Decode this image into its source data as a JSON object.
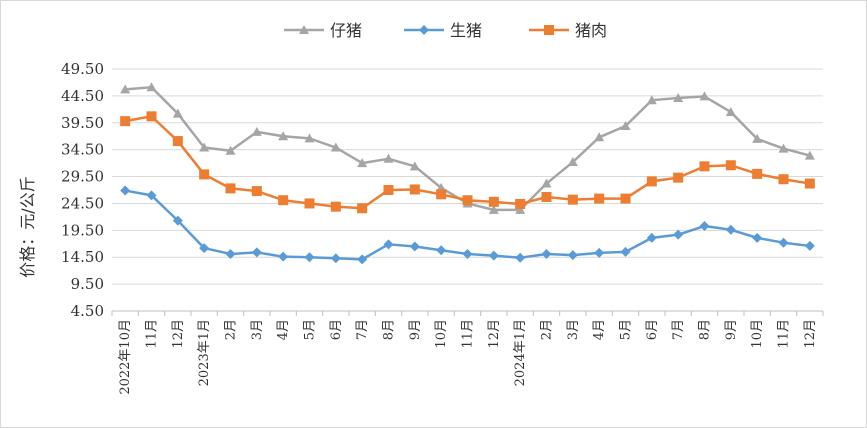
{
  "chart_data": {
    "type": "line",
    "title": "",
    "xlabel": "",
    "ylabel": "价格：元/公斤",
    "ylim": [
      4.5,
      49.5
    ],
    "yticks": [
      4.5,
      9.5,
      14.5,
      19.5,
      24.5,
      29.5,
      34.5,
      39.5,
      44.5,
      49.5
    ],
    "ytick_labels": [
      "4.50",
      "9.50",
      "14.50",
      "19.50",
      "24.50",
      "29.50",
      "34.50",
      "39.50",
      "44.50",
      "49.50"
    ],
    "grid": "horizontal",
    "legend_position": "top",
    "categories": [
      "2022年10月",
      "11月",
      "12月",
      "2023年1月",
      "2月",
      "3月",
      "4月",
      "5月",
      "6月",
      "7月",
      "8月",
      "9月",
      "10月",
      "11月",
      "12月",
      "2024年1月",
      "2月",
      "3月",
      "4月",
      "5月",
      "6月",
      "7月",
      "8月",
      "9月",
      "10月",
      "11月",
      "12月"
    ],
    "series": [
      {
        "name": "仔猪",
        "color": "#a5a5a5",
        "marker": "triangle",
        "values": [
          45.7,
          46.1,
          41.2,
          34.9,
          34.3,
          37.8,
          37.0,
          36.6,
          34.9,
          32.0,
          32.8,
          31.4,
          27.4,
          24.5,
          23.3,
          23.3,
          28.2,
          32.2,
          36.8,
          38.9,
          43.7,
          44.1,
          44.4,
          41.5,
          36.5,
          34.7,
          33.4
        ]
      },
      {
        "name": "生猪",
        "color": "#5b9bd5",
        "marker": "diamond",
        "values": [
          26.9,
          26.0,
          21.3,
          16.2,
          15.1,
          15.4,
          14.6,
          14.5,
          14.3,
          14.1,
          16.9,
          16.5,
          15.8,
          15.1,
          14.8,
          14.4,
          15.1,
          14.9,
          15.3,
          15.5,
          18.1,
          18.7,
          20.3,
          19.6,
          18.1,
          17.2,
          16.6
        ]
      },
      {
        "name": "猪肉",
        "color": "#ed7d31",
        "marker": "square",
        "values": [
          39.8,
          40.7,
          36.1,
          29.9,
          27.3,
          26.8,
          25.1,
          24.5,
          23.9,
          23.6,
          27.0,
          27.1,
          26.2,
          25.1,
          24.8,
          24.4,
          25.7,
          25.2,
          25.4,
          25.4,
          28.6,
          29.3,
          31.4,
          31.6,
          30.0,
          29.0,
          28.2
        ]
      }
    ]
  }
}
